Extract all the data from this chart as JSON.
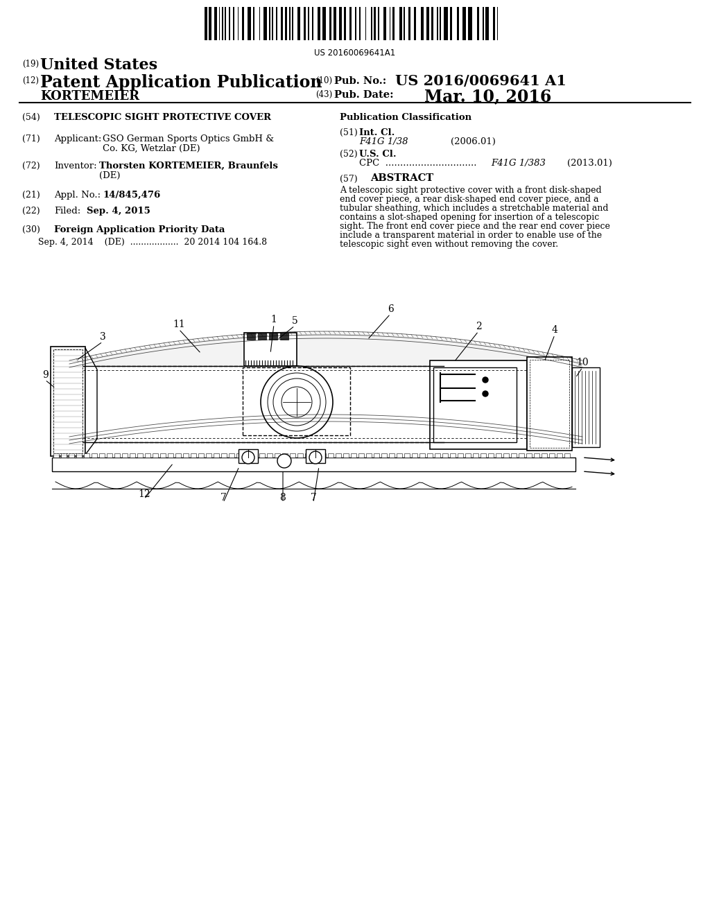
{
  "bg_color": "#ffffff",
  "barcode_text": "US 20160069641A1",
  "pub_no_label": "(10) Pub. No.:",
  "pub_no_value": "US 2016/0069641 A1",
  "pub_date_label": "(43) Pub. Date:",
  "pub_date_value": "Mar. 10, 2016",
  "field54_value": "TELESCOPIC SIGHT PROTECTIVE COVER",
  "pub_class_label": "Publication Classification",
  "field71_value1": "GSO German Sports Optics GmbH &",
  "field71_value2": "Co. KG, Wetzlar (DE)",
  "field72_value1": "Thorsten KORTEMEIER, Braunfels",
  "field72_value2": "(DE)",
  "field51_class": "F41G 1/38",
  "field51_year": "(2006.01)",
  "field52_class": "F41G 1/383",
  "field52_year": "(2013.01)",
  "field21_value": "14/845,476",
  "field57_key": "ABSTRACT",
  "abstract_lines": [
    "A telescopic sight protective cover with a front disk-shaped",
    "end cover piece, a rear disk-shaped end cover piece, and a",
    "tubular sheathing, which includes a stretchable material and",
    "contains a slot-shaped opening for insertion of a telescopic",
    "sight. The front end cover piece and the rear end cover piece",
    "include a transparent material in order to enable use of the",
    "telescopic sight even without removing the cover."
  ],
  "field22_value": "Sep. 4, 2015",
  "field30_key": "Foreign Application Priority Data",
  "field30_entry": "Sep. 4, 2014    (DE)  ..................  20 2014 104 164.8"
}
